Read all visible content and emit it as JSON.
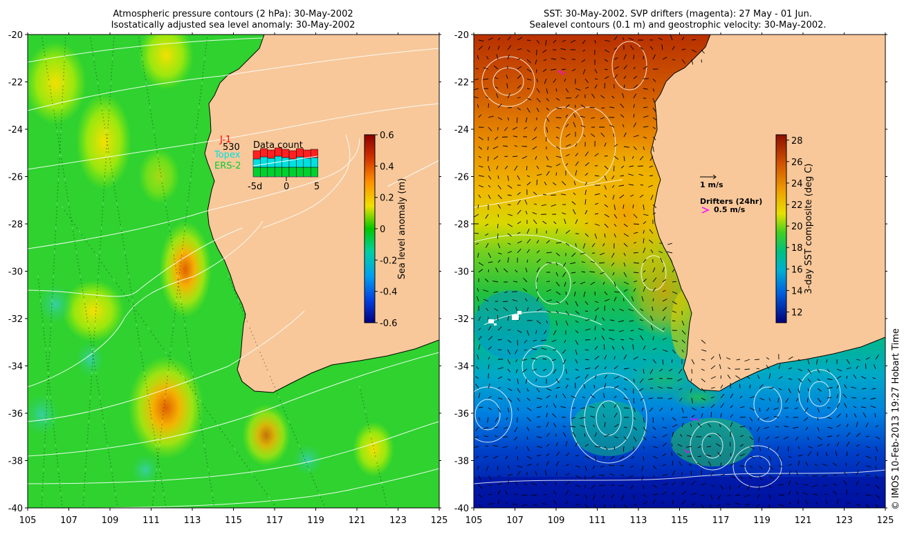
{
  "left_panel": {
    "title_line1": "Atmospheric pressure contours (2 hPa): 30-May-2002",
    "title_line2": "Isostatically adjusted sea level anomaly: 30-May-2002",
    "x_ticks": [
      "105",
      "107",
      "109",
      "111",
      "113",
      "115",
      "117",
      "119",
      "121",
      "123",
      "125"
    ],
    "y_ticks": [
      "-20",
      "-22",
      "-24",
      "-26",
      "-28",
      "-30",
      "-32",
      "-34",
      "-36",
      "-38",
      "-40"
    ],
    "lon_range": [
      105,
      125
    ],
    "lat_range": [
      -40,
      -20
    ],
    "satellites": {
      "jason": "J-1",
      "count": "530",
      "topex": "Topex",
      "ers": "ERS-2"
    },
    "data_count": {
      "title": "Data count",
      "ticks": [
        "-5d",
        "0",
        "5"
      ]
    },
    "colorbar": {
      "label": "Sea level anomaly (m)",
      "ticks": [
        "0.6",
        "0.4",
        "0.2",
        "0",
        "-0.2",
        "-0.4",
        "-0.6"
      ],
      "range": [
        -0.6,
        0.6
      ]
    }
  },
  "right_panel": {
    "title_line1": "SST: 30-May-2002. SVP drifters (magenta): 27 May - 01 Jun.",
    "title_line2": "Sealevel contours (0.1 m) and geostrophic velocity: 30-May-2002.",
    "x_ticks": [
      "105",
      "107",
      "109",
      "111",
      "113",
      "115",
      "117",
      "119",
      "121",
      "123",
      "125"
    ],
    "y_ticks": [
      "-20",
      "-22",
      "-24",
      "-26",
      "-28",
      "-30",
      "-32",
      "-34",
      "-36",
      "-38",
      "-40"
    ],
    "scale_label": "1 m/s",
    "drifters_label": "Drifters (24hr)",
    "drifter_speed": "0.5 m/s",
    "colorbar": {
      "label": "3-day SST composite (deg C)",
      "ticks": [
        "28",
        "26",
        "24",
        "22",
        "20",
        "18",
        "16",
        "14",
        "12"
      ],
      "range": [
        11,
        28.5
      ]
    }
  },
  "credit": "© IMOS 10-Feb-2013 19:27 Hobart Time",
  "colors": {
    "land": "#f8c89a",
    "sla_base": "#2fd22f",
    "sla_high": "#ffb000",
    "sst_warm": "#c84800",
    "sst_cold": "#0000a0",
    "jason": "#ff0000",
    "topex": "#00e0e0",
    "ers": "#00d030",
    "drifter": "#ff00ff"
  }
}
